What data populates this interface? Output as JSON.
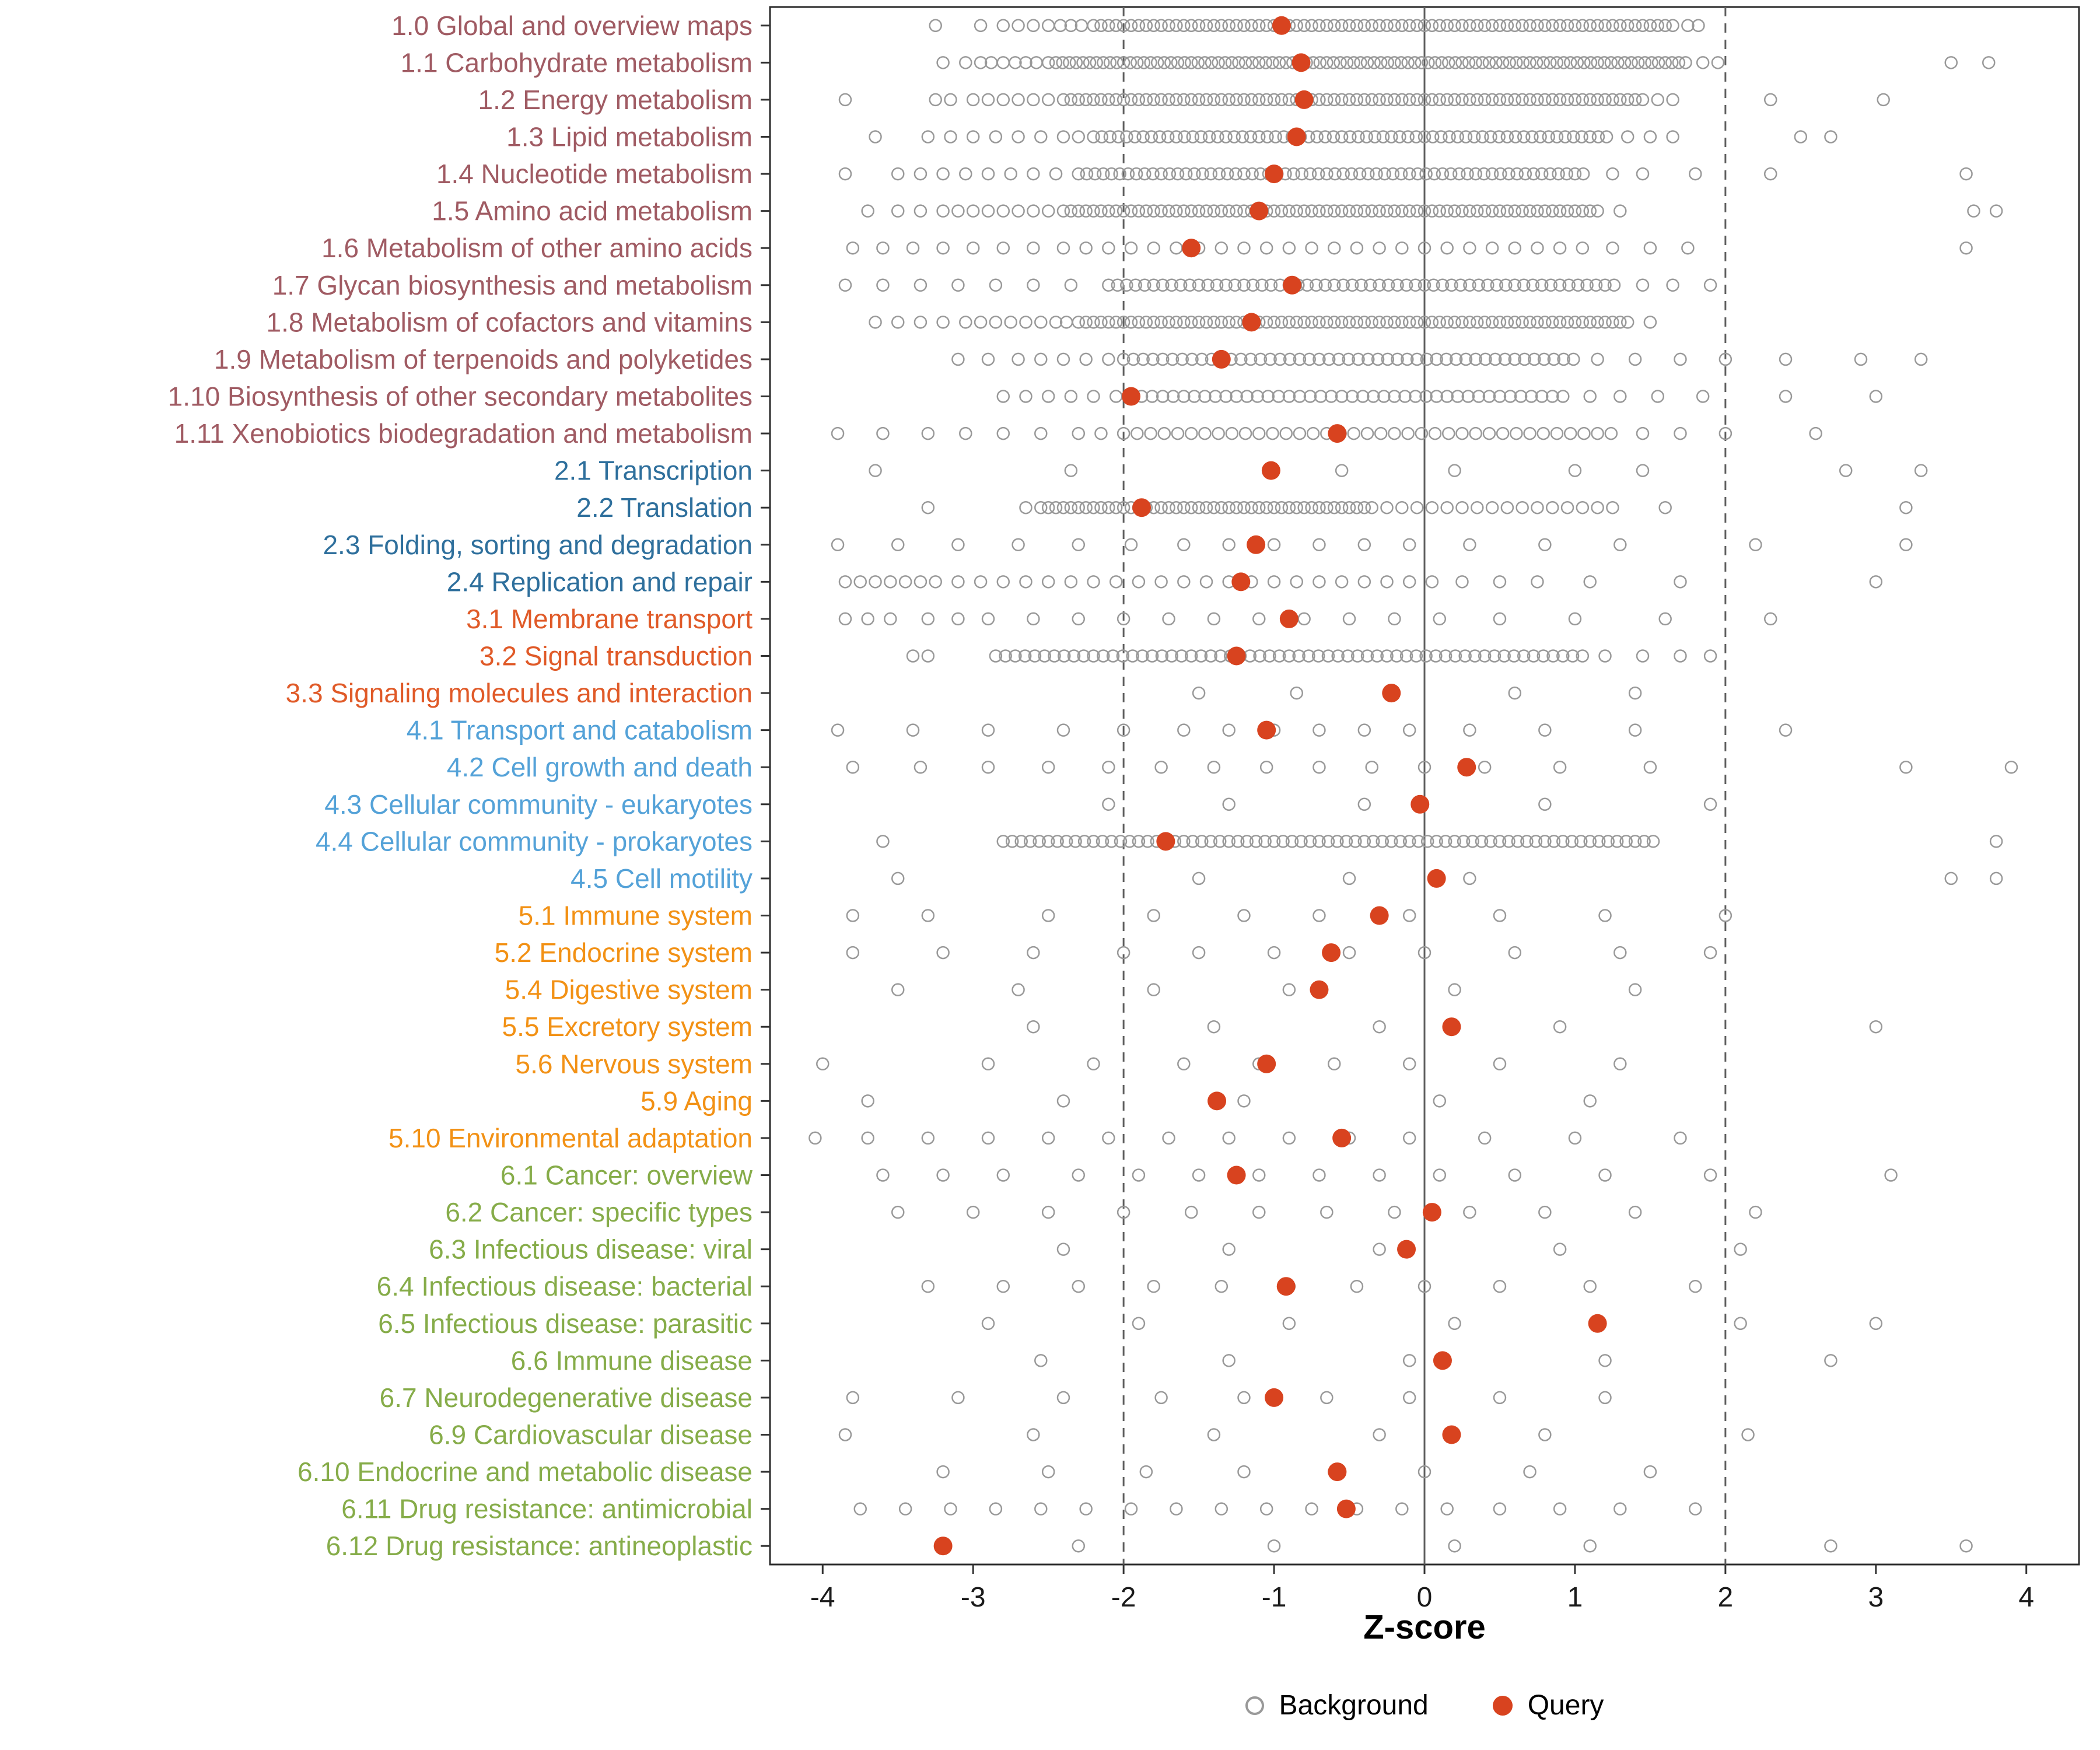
{
  "colors": {
    "query": "#D8431F",
    "background_stroke": "#999999",
    "panel_border": "#2B2B2B",
    "vline": "#5E5E5E",
    "tick": "#333333",
    "groups": {
      "1": "#A05B63",
      "2": "#2E6F9C",
      "3": "#E05A28",
      "4": "#54A2D8",
      "5": "#F29115",
      "6": "#86AC49"
    }
  },
  "chart_data": {
    "type": "scatter",
    "variant": "horizontal-strip-dot-plot",
    "title": "",
    "xlabel": "Z-score",
    "ylabel": "",
    "xlim": [
      -4.35,
      4.35
    ],
    "x_ticks": [
      -4,
      -3,
      -2,
      -1,
      0,
      1,
      2,
      3,
      4
    ],
    "grid": "off",
    "vlines": [
      {
        "x": -2,
        "style": "dashed"
      },
      {
        "x": 0,
        "style": "solid"
      },
      {
        "x": 2,
        "style": "dashed"
      }
    ],
    "legend": {
      "background": "Background",
      "query": "Query"
    },
    "legend_position": "bottom",
    "background_encoding": "entries are x-values; a [from,to,step] triple expands to an inclusive sequence of x-values",
    "rows": [
      {
        "label": "1.0 Global and overview maps",
        "group": "1",
        "query": -0.95,
        "background": [
          [
            -2.2,
            1.65,
            0.05
          ],
          -3.25,
          -2.95,
          -2.8,
          -2.7,
          -2.6,
          -2.5,
          -2.42,
          -2.35,
          -2.28,
          1.75,
          1.82
        ]
      },
      {
        "label": "1.1 Carbohydrate metabolism",
        "group": "1",
        "query": -0.82,
        "background": [
          [
            -2.45,
            1.75,
            0.045
          ],
          -3.2,
          -3.05,
          -2.95,
          -2.88,
          -2.8,
          -2.72,
          -2.65,
          -2.58,
          -2.5,
          1.85,
          1.95,
          3.5,
          3.75
        ]
      },
      {
        "label": "1.2 Energy metabolism",
        "group": "1",
        "query": -0.8,
        "background": [
          [
            -2.4,
            1.45,
            0.05
          ],
          -3.85,
          -3.25,
          -3.15,
          -3.0,
          -2.9,
          -2.8,
          -2.7,
          -2.6,
          -2.5,
          1.55,
          1.65,
          2.3,
          3.05
        ]
      },
      {
        "label": "1.3 Lipid metabolism",
        "group": "1",
        "query": -0.85,
        "background": [
          [
            -2.2,
            1.25,
            0.055
          ],
          -3.65,
          -3.3,
          -3.15,
          -3.0,
          -2.85,
          -2.7,
          -2.55,
          -2.4,
          -2.3,
          1.35,
          1.5,
          1.65,
          2.5,
          2.7
        ]
      },
      {
        "label": "1.4 Nucleotide metabolism",
        "group": "1",
        "query": -1.0,
        "background": [
          [
            -2.3,
            1.1,
            0.055
          ],
          -3.85,
          -3.5,
          -3.35,
          -3.2,
          -3.05,
          -2.9,
          -2.75,
          -2.6,
          -2.45,
          1.25,
          1.45,
          1.8,
          2.3,
          3.6
        ]
      },
      {
        "label": "1.5 Amino acid metabolism",
        "group": "1",
        "query": -1.1,
        "background": [
          [
            -2.4,
            1.15,
            0.05
          ],
          -3.7,
          -3.5,
          -3.35,
          -3.2,
          -3.1,
          -3.0,
          -2.9,
          -2.8,
          -2.7,
          -2.6,
          -2.5,
          1.3,
          3.65,
          3.8
        ]
      },
      {
        "label": "1.6 Metabolism of other amino acids",
        "group": "1",
        "query": -1.55,
        "background": [
          -3.8,
          -3.6,
          -3.4,
          -3.2,
          -3.0,
          -2.8,
          -2.6,
          -2.4,
          -2.25,
          -2.1,
          -1.95,
          -1.8,
          -1.65,
          -1.5,
          -1.35,
          -1.2,
          -1.05,
          -0.9,
          -0.75,
          -0.6,
          -0.45,
          -0.3,
          -0.15,
          0.0,
          0.15,
          0.3,
          0.45,
          0.6,
          0.75,
          0.9,
          1.05,
          1.25,
          1.5,
          1.75,
          3.6
        ]
      },
      {
        "label": "1.7 Glycan biosynthesis and metabolism",
        "group": "1",
        "query": -0.88,
        "background": [
          [
            -2.1,
            1.3,
            0.06
          ],
          -3.85,
          -3.6,
          -3.35,
          -3.1,
          -2.85,
          -2.6,
          -2.35,
          1.45,
          1.65,
          1.9
        ]
      },
      {
        "label": "1.8 Metabolism of cofactors and vitamins",
        "group": "1",
        "query": -1.15,
        "background": [
          [
            -2.25,
            1.35,
            0.05
          ],
          -3.65,
          -3.5,
          -3.35,
          -3.2,
          -3.05,
          -2.95,
          -2.85,
          -2.75,
          -2.65,
          -2.55,
          -2.45,
          -2.38,
          -2.3,
          1.5
        ]
      },
      {
        "label": "1.9 Metabolism of terpenoids and polyketides",
        "group": "1",
        "query": -1.35,
        "background": [
          [
            -2.0,
            1.0,
            0.065
          ],
          -3.1,
          -2.9,
          -2.7,
          -2.55,
          -2.4,
          -2.25,
          -2.1,
          1.15,
          1.4,
          1.7,
          2.0,
          2.4,
          2.9,
          3.3
        ]
      },
      {
        "label": "1.10 Biosynthesis of other secondary metabolites",
        "group": "1",
        "query": -1.95,
        "background": [
          [
            -1.95,
            0.95,
            0.07
          ],
          -2.8,
          -2.65,
          -2.5,
          -2.35,
          -2.2,
          -2.05,
          1.1,
          1.3,
          1.55,
          1.85,
          2.4,
          3.0
        ]
      },
      {
        "label": "1.11 Xenobiotics biodegradation and metabolism",
        "group": "1",
        "query": -0.58,
        "background": [
          [
            -2.0,
            1.3,
            0.09
          ],
          -3.9,
          -3.6,
          -3.3,
          -3.05,
          -2.8,
          -2.55,
          -2.3,
          -2.15,
          1.45,
          1.7,
          2.0,
          2.6
        ]
      },
      {
        "label": "2.1 Transcription",
        "group": "2",
        "query": -1.02,
        "background": [
          -3.65,
          -2.35,
          -0.55,
          0.2,
          1.0,
          1.45,
          2.8,
          3.3
        ]
      },
      {
        "label": "2.2 Translation",
        "group": "2",
        "query": -1.88,
        "background": [
          [
            -2.55,
            -0.35,
            0.05
          ],
          [
            -0.25,
            1.3,
            0.1
          ],
          -3.3,
          -2.65,
          1.6,
          3.2
        ]
      },
      {
        "label": "2.3 Folding, sorting and degradation",
        "group": "2",
        "query": -1.12,
        "background": [
          -3.9,
          -3.5,
          -3.1,
          -2.7,
          -2.3,
          -1.95,
          -1.6,
          -1.3,
          -1.0,
          -0.7,
          -0.4,
          -0.1,
          0.3,
          0.8,
          1.3,
          2.2,
          3.2
        ]
      },
      {
        "label": "2.4 Replication and repair",
        "group": "2",
        "query": -1.22,
        "background": [
          -3.85,
          -3.75,
          -3.65,
          -3.55,
          -3.45,
          -3.35,
          -3.25,
          -3.1,
          -2.95,
          -2.8,
          -2.65,
          -2.5,
          -2.35,
          -2.2,
          -2.05,
          -1.9,
          -1.75,
          -1.6,
          -1.45,
          -1.3,
          -1.15,
          -1.0,
          -0.85,
          -0.7,
          -0.55,
          -0.4,
          -0.25,
          -0.1,
          0.05,
          0.25,
          0.5,
          0.75,
          1.1,
          1.7,
          3.0
        ]
      },
      {
        "label": "3.1 Membrane transport",
        "group": "3",
        "query": -0.9,
        "background": [
          -3.85,
          -3.7,
          -3.55,
          -3.3,
          -3.1,
          -2.9,
          -2.6,
          -2.3,
          -2.0,
          -1.7,
          -1.4,
          -1.1,
          -0.8,
          -0.5,
          -0.2,
          0.1,
          0.5,
          1.0,
          1.6,
          2.3
        ]
      },
      {
        "label": "3.2 Signal transduction",
        "group": "3",
        "query": -1.25,
        "background": [
          [
            -2.85,
            1.05,
            0.065
          ],
          -3.4,
          -3.3,
          1.2,
          1.45,
          1.7,
          1.9
        ]
      },
      {
        "label": "3.3 Signaling molecules and interaction",
        "group": "3",
        "query": -0.22,
        "background": [
          -1.5,
          -0.85,
          0.6,
          1.4
        ]
      },
      {
        "label": "4.1 Transport and catabolism",
        "group": "4",
        "query": -1.05,
        "background": [
          -3.9,
          -3.4,
          -2.9,
          -2.4,
          -2.0,
          -1.6,
          -1.3,
          -1.0,
          -0.7,
          -0.4,
          -0.1,
          0.3,
          0.8,
          1.4,
          2.4
        ]
      },
      {
        "label": "4.2 Cell growth and death",
        "group": "4",
        "query": 0.28,
        "background": [
          -3.8,
          -3.35,
          -2.9,
          -2.5,
          -2.1,
          -1.75,
          -1.4,
          -1.05,
          -0.7,
          -0.35,
          0.0,
          0.4,
          0.9,
          1.5,
          3.2,
          3.9
        ]
      },
      {
        "label": "4.3 Cellular community - eukaryotes",
        "group": "4",
        "query": -0.03,
        "background": [
          -2.1,
          -1.3,
          -0.4,
          0.8,
          1.9
        ]
      },
      {
        "label": "4.4 Cellular community - prokaryotes",
        "group": "4",
        "query": -1.72,
        "background": [
          [
            -2.8,
            1.55,
            0.06
          ],
          -3.6,
          3.8
        ]
      },
      {
        "label": "4.5 Cell motility",
        "group": "4",
        "query": 0.08,
        "background": [
          -3.5,
          -1.5,
          -0.5,
          0.3,
          3.5,
          3.8
        ]
      },
      {
        "label": "5.1 Immune system",
        "group": "5",
        "query": -0.3,
        "background": [
          -3.8,
          -3.3,
          -2.5,
          -1.8,
          -1.2,
          -0.7,
          -0.1,
          0.5,
          1.2,
          2.0
        ]
      },
      {
        "label": "5.2 Endocrine system",
        "group": "5",
        "query": -0.62,
        "background": [
          -3.8,
          -3.2,
          -2.6,
          -2.0,
          -1.5,
          -1.0,
          -0.5,
          0.0,
          0.6,
          1.3,
          1.9
        ]
      },
      {
        "label": "5.4 Digestive system",
        "group": "5",
        "query": -0.7,
        "background": [
          -3.5,
          -2.7,
          -1.8,
          -0.9,
          0.2,
          1.4
        ]
      },
      {
        "label": "5.5 Excretory system",
        "group": "5",
        "query": 0.18,
        "background": [
          -2.6,
          -1.4,
          -0.3,
          0.9,
          3.0
        ]
      },
      {
        "label": "5.6 Nervous system",
        "group": "5",
        "query": -1.05,
        "background": [
          -4.0,
          -2.9,
          -2.2,
          -1.6,
          -1.1,
          -0.6,
          -0.1,
          0.5,
          1.3
        ]
      },
      {
        "label": "5.9 Aging",
        "group": "5",
        "query": -1.38,
        "background": [
          -3.7,
          -2.4,
          -1.2,
          0.1,
          1.1
        ]
      },
      {
        "label": "5.10 Environmental adaptation",
        "group": "5",
        "query": -0.55,
        "background": [
          -4.05,
          -3.7,
          -3.3,
          -2.9,
          -2.5,
          -2.1,
          -1.7,
          -1.3,
          -0.9,
          -0.5,
          -0.1,
          0.4,
          1.0,
          1.7
        ]
      },
      {
        "label": "6.1 Cancer: overview",
        "group": "6",
        "query": -1.25,
        "background": [
          -3.6,
          -3.2,
          -2.8,
          -2.3,
          -1.9,
          -1.5,
          -1.1,
          -0.7,
          -0.3,
          0.1,
          0.6,
          1.2,
          1.9,
          3.1
        ]
      },
      {
        "label": "6.2 Cancer: specific types",
        "group": "6",
        "query": 0.05,
        "background": [
          -3.5,
          -3.0,
          -2.5,
          -2.0,
          -1.55,
          -1.1,
          -0.65,
          -0.2,
          0.3,
          0.8,
          1.4,
          2.2
        ]
      },
      {
        "label": "6.3 Infectious disease: viral",
        "group": "6",
        "query": -0.12,
        "background": [
          -2.4,
          -1.3,
          -0.3,
          0.9,
          2.1
        ]
      },
      {
        "label": "6.4 Infectious disease: bacterial",
        "group": "6",
        "query": -0.92,
        "background": [
          -3.3,
          -2.8,
          -2.3,
          -1.8,
          -1.35,
          -0.9,
          -0.45,
          0.0,
          0.5,
          1.1,
          1.8
        ]
      },
      {
        "label": "6.5 Infectious disease: parasitic",
        "group": "6",
        "query": 1.15,
        "background": [
          -2.9,
          -1.9,
          -0.9,
          0.2,
          2.1,
          3.0
        ]
      },
      {
        "label": "6.6 Immune disease",
        "group": "6",
        "query": 0.12,
        "background": [
          -2.55,
          -1.3,
          -0.1,
          1.2,
          2.7
        ]
      },
      {
        "label": "6.7 Neurodegenerative disease",
        "group": "6",
        "query": -1.0,
        "background": [
          -3.8,
          -3.1,
          -2.4,
          -1.75,
          -1.2,
          -0.65,
          -0.1,
          0.5,
          1.2
        ]
      },
      {
        "label": "6.9 Cardiovascular disease",
        "group": "6",
        "query": 0.18,
        "background": [
          -3.85,
          -2.6,
          -1.4,
          -0.3,
          0.8,
          2.15
        ]
      },
      {
        "label": "6.10 Endocrine and metabolic disease",
        "group": "6",
        "query": -0.58,
        "background": [
          -3.2,
          -2.5,
          -1.85,
          -1.2,
          -0.6,
          0.0,
          0.7,
          1.5
        ]
      },
      {
        "label": "6.11 Drug resistance: antimicrobial",
        "group": "6",
        "query": -0.52,
        "background": [
          -3.75,
          -3.45,
          -3.15,
          -2.85,
          -2.55,
          -2.25,
          -1.95,
          -1.65,
          -1.35,
          -1.05,
          -0.75,
          -0.45,
          -0.15,
          0.15,
          0.5,
          0.9,
          1.3,
          1.8
        ]
      },
      {
        "label": "6.12 Drug resistance: antineoplastic",
        "group": "6",
        "query": -3.2,
        "background": [
          -2.3,
          -1.0,
          0.2,
          1.1,
          2.7,
          3.6
        ]
      }
    ]
  }
}
